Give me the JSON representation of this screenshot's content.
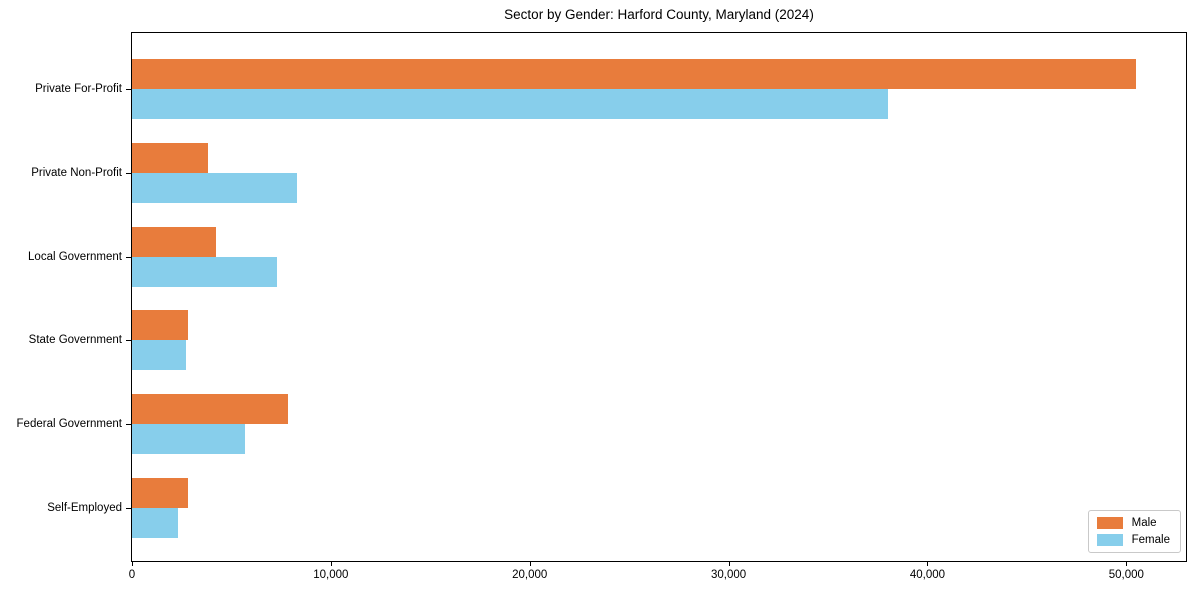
{
  "title": "Sector by Gender: Harford County, Maryland (2024)",
  "colors": {
    "male": "#E87C3C",
    "female": "#87CEEB",
    "axis": "#000000",
    "legend_border": "#c9c9c9",
    "background": "#ffffff"
  },
  "legend": {
    "items": [
      {
        "label": "Male",
        "color": "#E87C3C"
      },
      {
        "label": "Female",
        "color": "#87CEEB"
      }
    ],
    "position": "lower-right"
  },
  "chart_data": {
    "type": "bar",
    "orientation": "horizontal",
    "title": "Sector by Gender: Harford County, Maryland (2024)",
    "xlabel": "",
    "ylabel": "",
    "categories": [
      "Private For-Profit",
      "Private Non-Profit",
      "Local Government",
      "State Government",
      "Federal Government",
      "Self-Employed"
    ],
    "series": [
      {
        "name": "Male",
        "color": "#E87C3C",
        "values": [
          50500,
          3800,
          4200,
          2800,
          7850,
          2800
        ]
      },
      {
        "name": "Female",
        "color": "#87CEEB",
        "values": [
          38000,
          8300,
          7300,
          2700,
          5700,
          2300
        ]
      }
    ],
    "xlim": [
      0,
      53000
    ],
    "xticks": [
      0,
      10000,
      20000,
      30000,
      40000,
      50000
    ],
    "xtick_labels": [
      "0",
      "10,000",
      "20,000",
      "30,000",
      "40,000",
      "50,000"
    ],
    "grid": false,
    "legend_position": "lower right"
  }
}
